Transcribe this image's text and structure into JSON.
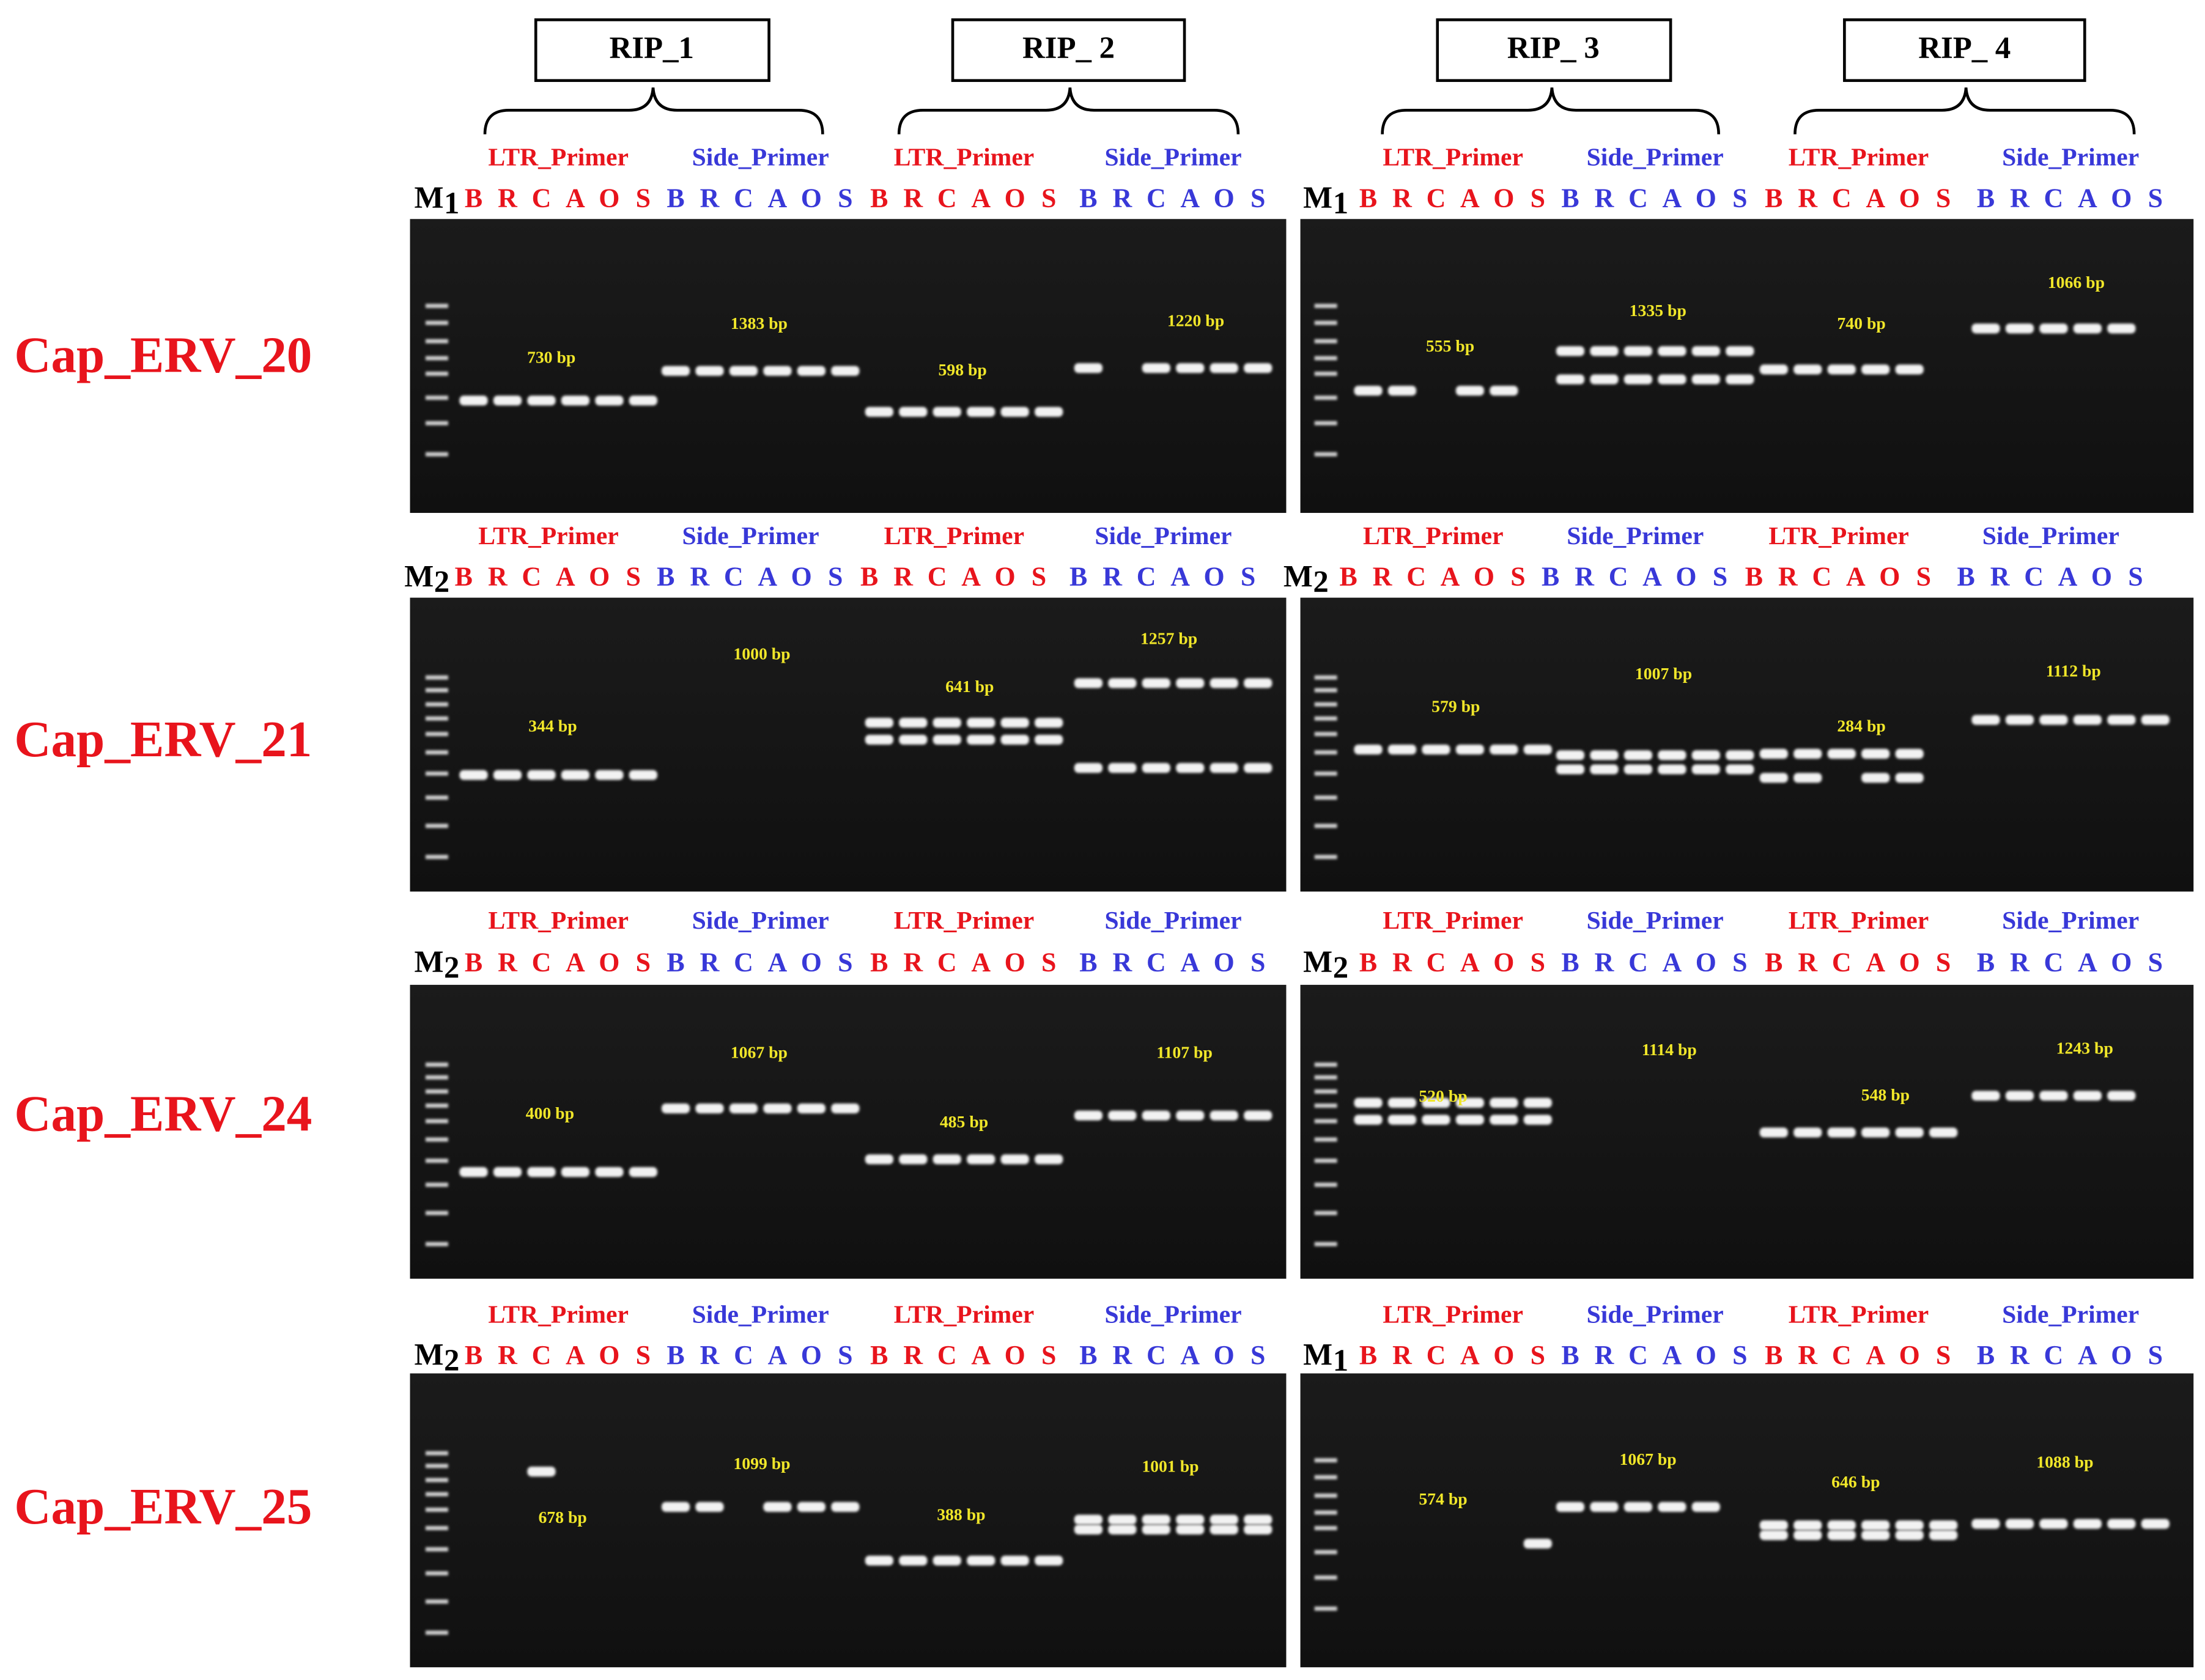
{
  "header": {
    "rip_labels": [
      "RIP_1",
      "RIP_ 2",
      "RIP_ 3",
      "RIP_ 4"
    ]
  },
  "primers": {
    "ltr": "LTR_Primer",
    "side": "Side_Primer"
  },
  "lanes": [
    "B",
    "R",
    "C",
    "A",
    "O",
    "S"
  ],
  "rows": [
    {
      "name": "Cap_ERV_20",
      "markers": [
        {
          "base": "M",
          "sub": "1"
        },
        {
          "base": "M",
          "sub": "1"
        }
      ],
      "bands": [
        [
          "730 bp",
          "1383 bp",
          "598 bp",
          "1220 bp"
        ],
        [
          "555 bp",
          "1335 bp",
          "740 bp",
          "1066 bp"
        ]
      ]
    },
    {
      "name": "Cap_ERV_21",
      "markers": [
        {
          "base": "M",
          "sub": "2"
        },
        {
          "base": "M",
          "sub": "2"
        }
      ],
      "bands": [
        [
          "344 bp",
          "1000 bp",
          "641 bp",
          "1257 bp"
        ],
        [
          "579 bp",
          "1007 bp",
          "284 bp",
          "1112 bp"
        ]
      ]
    },
    {
      "name": "Cap_ERV_24",
      "markers": [
        {
          "base": "M",
          "sub": "2"
        },
        {
          "base": "M",
          "sub": "2"
        }
      ],
      "bands": [
        [
          "400 bp",
          "1067 bp",
          "485 bp",
          "1107 bp"
        ],
        [
          "520 bp",
          "1114 bp",
          "548 bp",
          "1243 bp"
        ]
      ]
    },
    {
      "name": "Cap_ERV_25",
      "markers": [
        {
          "base": "M",
          "sub": "2"
        },
        {
          "base": "M",
          "sub": "1"
        }
      ],
      "bands": [
        [
          "678 bp",
          "1099 bp",
          "388 bp",
          "1001 bp"
        ],
        [
          "574 bp",
          "1067 bp",
          "646 bp",
          "1088 bp"
        ]
      ]
    }
  ]
}
